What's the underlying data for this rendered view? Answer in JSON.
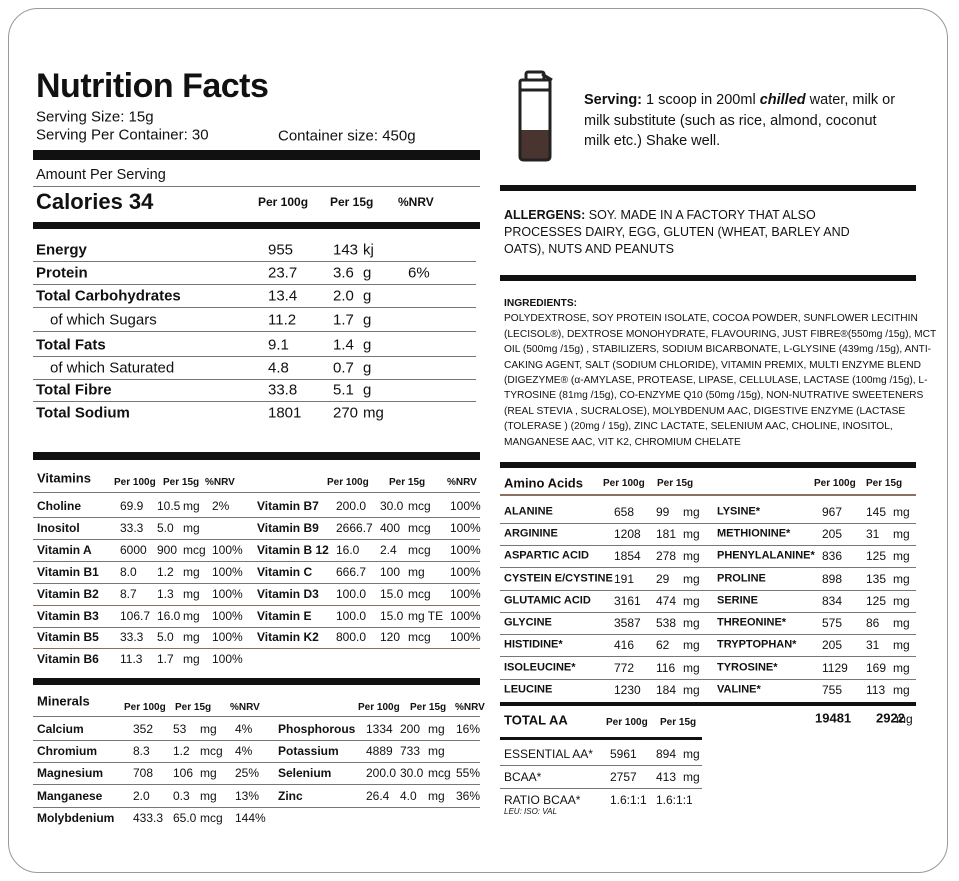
{
  "header": {
    "title": "Nutrition Facts",
    "serving_size": "Serving Size: 15g",
    "servings_per_container": "Serving Per Container: 30",
    "container_size": "Container size: 450g"
  },
  "main": {
    "amount_per_serving": "Amount Per Serving",
    "calories": "Calories 34",
    "columns": [
      "Per 100g",
      "Per 15g",
      "%NRV"
    ],
    "rows": [
      [
        "Energy",
        "955",
        "143",
        "kj"
      ],
      [
        "Protein",
        "23.7",
        "3.6",
        "g",
        "6%"
      ],
      [
        "Total Carbohydrates",
        "13.4",
        "2.0",
        "g"
      ],
      [
        "of which Sugars",
        "11.2",
        "1.7",
        "g"
      ],
      [
        "Total Fats",
        "9.1",
        "1.4",
        "g"
      ],
      [
        "of which Saturated",
        "4.8",
        "0.7",
        "g"
      ],
      [
        "Total Fibre",
        "33.8",
        "5.1",
        "g"
      ],
      [
        "Total Sodium",
        "1801",
        "270",
        "mg"
      ]
    ]
  },
  "serving": {
    "label": "Serving:",
    "text_before": "1 scoop in 200ml",
    "emphasis": "chilled",
    "text_after": "water, milk or milk substitute (such as rice, almond, coconut milk etc.)  Shake well."
  },
  "allergens": {
    "label": "ALLERGENS:",
    "text": "SOY. MADE IN A FACTORY THAT ALSO PROCESSES DAIRY, EGG, GLUTEN (WHEAT, BARLEY AND OATS), NUTS AND PEANUTS"
  },
  "ingredients": {
    "label": "INGREDIENTS:",
    "text": "POLYDEXTROSE, SOY PROTEIN ISOLATE, COCOA POWDER, SUNFLOWER LECITHIN (LECISOL®), DEXTROSE  MONOHYDRATE, FLAVOURING, JUST FIBRE®(550mg /15g), MCT OIL (500mg /15g) , STABILIZERS, SODIUM BICARBONATE, L-GLYSINE (439mg /15g), ANTI-CAKING AGENT, SALT (SODIUM CHLORIDE), VITAMIN PREMIX, MULTI ENZYME BLEND (DIGEZYME® (α-AMYLASE, PROTEASE, LIPASE, CELLULASE, LACTASE (100mg /15g), L-TYROSINE (81mg /15g), CO-ENZYME Q10 (50mg /15g), NON-NUTRATIVE SWEETENERS (REAL STEVIA  , SUCRALOSE), MOLYBDENUM AAC, DIGESTIVE ENZYME (LACTASE (TOLERASE  ) (20mg / 15g), ZINC LACTATE, SELENIUM AAC, CHOLINE, INOSITOL, MANGANESE AAC, VIT K2, CHROMIUM CHELATE"
  },
  "vitamins": {
    "title": "Vitamins",
    "columns": [
      "Per 100g",
      "Per 15g",
      "%NRV"
    ],
    "left": [
      [
        "Choline",
        "69.9",
        "10.5",
        "mg",
        "2%"
      ],
      [
        "Inositol",
        "33.3",
        "5.0",
        "mg"
      ],
      [
        "Vitamin A",
        "6000",
        "900",
        "mcg",
        "100%"
      ],
      [
        "Vitamin B1",
        "8.0",
        "1.2",
        "mg",
        "100%"
      ],
      [
        "Vitamin B2",
        "8.7",
        "1.3",
        "mg",
        "100%"
      ],
      [
        "Vitamin B3",
        "106.7",
        "16.0",
        "mg",
        "100%"
      ],
      [
        "Vitamin B5",
        "33.3",
        "5.0",
        "mg",
        "100%"
      ],
      [
        "Vitamin B6",
        "11.3",
        "1.7",
        "mg",
        "100%"
      ]
    ],
    "right": [
      [
        "Vitamin B7",
        "200.0",
        "30.0",
        "mcg",
        "100%"
      ],
      [
        "Vitamin B9",
        "2666.7",
        "400",
        "mcg",
        "100%"
      ],
      [
        "Vitamin B 12",
        "16.0",
        "2.4",
        "mcg",
        "100%"
      ],
      [
        "Vitamin C",
        "666.7",
        "100",
        "mg",
        "100%"
      ],
      [
        "Vitamin D3",
        "100.0",
        "15.0",
        "mcg",
        "100%"
      ],
      [
        "Vitamin E",
        "100.0",
        "15.0",
        "mg TE",
        "100%"
      ],
      [
        "Vitamin K2",
        "800.0",
        "120",
        "mcg",
        "100%"
      ]
    ]
  },
  "minerals": {
    "title": "Minerals",
    "columns": [
      "Per 100g",
      "Per 15g",
      "%NRV"
    ],
    "left": [
      [
        "Calcium",
        "352",
        "53",
        "mg",
        "4%"
      ],
      [
        "Chromium",
        "8.3",
        "1.2",
        "mcg",
        "4%"
      ],
      [
        "Magnesium",
        "708",
        "106",
        "mg",
        "25%"
      ],
      [
        "Manganese",
        "2.0",
        "0.3",
        "mg",
        "13%"
      ],
      [
        "Molybdenium",
        "433.3",
        "65.0",
        "mcg",
        "144%"
      ]
    ],
    "right": [
      [
        "Phosphorous",
        "1334",
        "200",
        "mg",
        "16%"
      ],
      [
        "Potassium",
        "4889",
        "733",
        "mg"
      ],
      [
        "Selenium",
        "200.0",
        "30.0",
        "mcg",
        "55%"
      ],
      [
        "Zinc",
        "26.4",
        "4.0",
        "mg",
        "36%"
      ]
    ]
  },
  "amino_acids": {
    "title": "Amino Acids",
    "columns": [
      "Per 100g",
      "Per 15g"
    ],
    "left": [
      [
        "ALANINE",
        "658",
        "99",
        "mg"
      ],
      [
        "ARGININE",
        "1208",
        "181",
        "mg"
      ],
      [
        "ASPARTIC ACID",
        "1854",
        "278",
        "mg"
      ],
      [
        "CYSTEIN E/CYSTINE",
        "191",
        "29",
        "mg"
      ],
      [
        "GLUTAMIC ACID",
        "3161",
        "474",
        "mg"
      ],
      [
        "GLYCINE",
        "3587",
        "538",
        "mg"
      ],
      [
        "HISTIDINE*",
        "416",
        "62",
        "mg"
      ],
      [
        "ISOLEUCINE*",
        "772",
        "116",
        "mg"
      ],
      [
        "LEUCINE",
        "1230",
        "184",
        "mg"
      ]
    ],
    "right": [
      [
        "LYSINE*",
        "967",
        "145",
        "mg"
      ],
      [
        "METHIONINE*",
        "205",
        "31",
        "mg"
      ],
      [
        "PHENYLALANINE*",
        "836",
        "125",
        "mg"
      ],
      [
        "PROLINE",
        "898",
        "135",
        "mg"
      ],
      [
        "SERINE",
        "834",
        "125",
        "mg"
      ],
      [
        "THREONINE*",
        "575",
        "86",
        "mg"
      ],
      [
        "TRYPTOPHAN*",
        "205",
        "31",
        "mg"
      ],
      [
        "TYROSINE*",
        "1129",
        "169",
        "mg"
      ],
      [
        "VALINE*",
        "755",
        "113",
        "mg"
      ]
    ],
    "total": {
      "label": "TOTAL AA",
      "columns": [
        "Per 100g",
        "Per 15g"
      ],
      "per_100g": "19481",
      "per_15g": "2922",
      "unit": "mg"
    },
    "summary": [
      [
        "ESSENTIAL AA*",
        "5961",
        "894",
        "mg"
      ],
      [
        "BCAA*",
        "2757",
        "413",
        "mg"
      ],
      [
        "RATIO BCAA*",
        "1.6:1:1",
        "1.6:1:1"
      ]
    ],
    "ratio_note": "LEU: ISO: VAL"
  }
}
